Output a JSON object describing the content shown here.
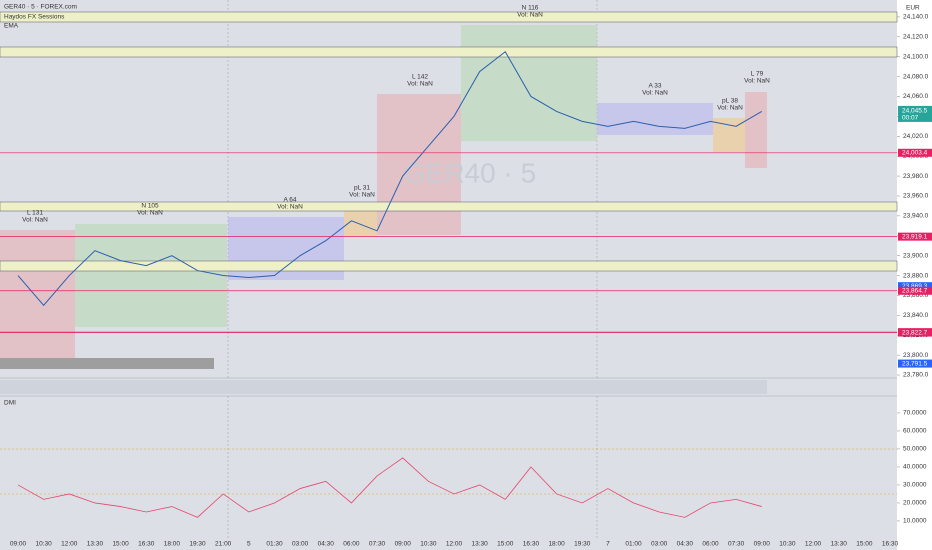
{
  "header": {
    "symbol": "GER40 · 5 · FOREX.com",
    "indicator1": "Haydos FX Sessions",
    "indicator2": "EMA",
    "currency": "EUR",
    "watermark": "GER40 · 5",
    "dmi_label": "DMI"
  },
  "chart_data": [
    {
      "type": "line",
      "color": "#2a5fb0",
      "categories": [
        "09:00",
        "10:30",
        "12:00",
        "13:30",
        "15:00",
        "16:30",
        "18:00",
        "19:30",
        "21:00",
        "5",
        "01:30",
        "03:00",
        "04:30",
        "06:00",
        "07:30",
        "09:00",
        "10:30",
        "12:00",
        "13:30",
        "15:00",
        "16:30",
        "18:00",
        "19:30",
        "7",
        "01:00",
        "03:00",
        "04:30",
        "06:00",
        "07:30",
        "09:00",
        "10:30",
        "12:00",
        "13:30",
        "15:00",
        "16:30"
      ],
      "values": [
        23880,
        23850,
        23880,
        23905,
        23895,
        23890,
        23900,
        23885,
        23880,
        23878,
        23880,
        23900,
        23915,
        23935,
        23925,
        23980,
        24010,
        24040,
        24085,
        24105,
        24060,
        24045,
        24035,
        24030,
        24035,
        24030,
        24028,
        24035,
        24030,
        24045,
        null,
        null,
        null,
        null,
        null
      ],
      "ylim": [
        23777,
        24157
      ],
      "yticks": [
        {
          "value": 23780,
          "label": "23,780.0"
        },
        {
          "value": 23800,
          "label": "23,800.0"
        },
        {
          "value": 23820,
          "label": "23,820.0"
        },
        {
          "value": 23840,
          "label": "23,840.0"
        },
        {
          "value": 23860,
          "label": "23,860.0"
        },
        {
          "value": 23880,
          "label": "23,880.0"
        },
        {
          "value": 23900,
          "label": "23,900.0"
        },
        {
          "value": 23920,
          "label": "23,920.0"
        },
        {
          "value": 23940,
          "label": "23,940.0"
        },
        {
          "value": 23960,
          "label": "23,960.0"
        },
        {
          "value": 23980,
          "label": "23,980.0"
        },
        {
          "value": 24000,
          "label": "24,000.0"
        },
        {
          "value": 24020,
          "label": "24,020.0"
        },
        {
          "value": 24040,
          "label": "24,040.0"
        },
        {
          "value": 24060,
          "label": "24,060.0"
        },
        {
          "value": 24080,
          "label": "24,080.0"
        },
        {
          "value": 24100,
          "label": "24,100.0"
        },
        {
          "value": 24120,
          "label": "24,120.0"
        },
        {
          "value": 24140,
          "label": "24,140.0"
        }
      ],
      "levels": [
        {
          "value": 24003.4,
          "label": "24,003.4",
          "color": "#e91e63"
        },
        {
          "value": 23919.1,
          "label": "23,919.1",
          "color": "#e91e63"
        },
        {
          "value": 23869.3,
          "label": "23,869.3",
          "color": "#2962ff"
        },
        {
          "value": 23864.7,
          "label": "23,864.7",
          "color": "#e91e63"
        },
        {
          "value": 23823.1,
          "label": "23,823.1",
          "color": "#e91e63"
        },
        {
          "value": 23822.7,
          "label": "23,822.7",
          "color": "#e91e63"
        },
        {
          "value": 23791.5,
          "label": "23,791.5",
          "color": "#2962ff"
        }
      ],
      "price_tag": {
        "value": 24045.5,
        "label": "24,045.5",
        "countdown": "00:07",
        "color": "#26a69a"
      },
      "annotations": [
        {
          "text": "L 131",
          "sub": "Vol: NaN"
        },
        {
          "text": "N 105",
          "sub": "Vol: NaN"
        },
        {
          "text": "A 64",
          "sub": "Vol: NaN"
        },
        {
          "text": "pL 31",
          "sub": "Vol: NaN"
        },
        {
          "text": "L 142",
          "sub": "Vol: NaN"
        },
        {
          "text": "N 116",
          "sub": "Vol: NaN"
        },
        {
          "text": "A 33",
          "sub": "Vol: NaN"
        },
        {
          "text": "pL 38",
          "sub": "Vol: NaN"
        },
        {
          "text": "L 79",
          "sub": "Vol: NaN"
        }
      ]
    },
    {
      "type": "line",
      "color": "#e5476b",
      "values": [
        30,
        22,
        25,
        20,
        18,
        15,
        18,
        12,
        25,
        15,
        20,
        28,
        32,
        20,
        35,
        45,
        32,
        25,
        30,
        22,
        40,
        25,
        20,
        28,
        20,
        15,
        12,
        20,
        22,
        18,
        null,
        null,
        null,
        null,
        null
      ],
      "ylim": [
        2.2,
        78.3
      ],
      "yticks": [
        {
          "value": 10,
          "label": "10.0000"
        },
        {
          "value": 20,
          "label": "20.0000"
        },
        {
          "value": 30,
          "label": "30.0000"
        },
        {
          "value": 40,
          "label": "40.0000"
        },
        {
          "value": 50,
          "label": "50.0000"
        },
        {
          "value": 60,
          "label": "60.0000"
        },
        {
          "value": 70,
          "label": "70.0000"
        }
      ]
    }
  ]
}
